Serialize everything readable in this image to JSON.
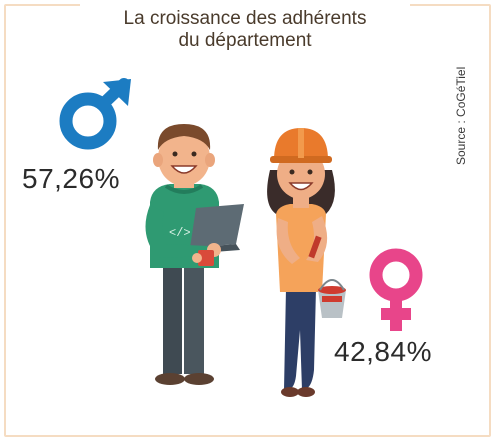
{
  "title_line1": "La croissance des adhérents",
  "title_line2": "du département",
  "source": "Source : CoGéTiel",
  "chart_data": {
    "type": "pictogram",
    "title": "La croissance des adhérents du département",
    "series": [
      {
        "name": "male",
        "label": "57,26%",
        "value": 57.26,
        "color": "#1c7cc2",
        "icon": "male-symbol-icon"
      },
      {
        "name": "female",
        "label": "42,84%",
        "value": 42.84,
        "color": "#e8458a",
        "icon": "female-symbol-icon"
      }
    ]
  },
  "colors": {
    "frame": "#f5dcc2",
    "male": "#1c7cc2",
    "female": "#e8458a"
  }
}
